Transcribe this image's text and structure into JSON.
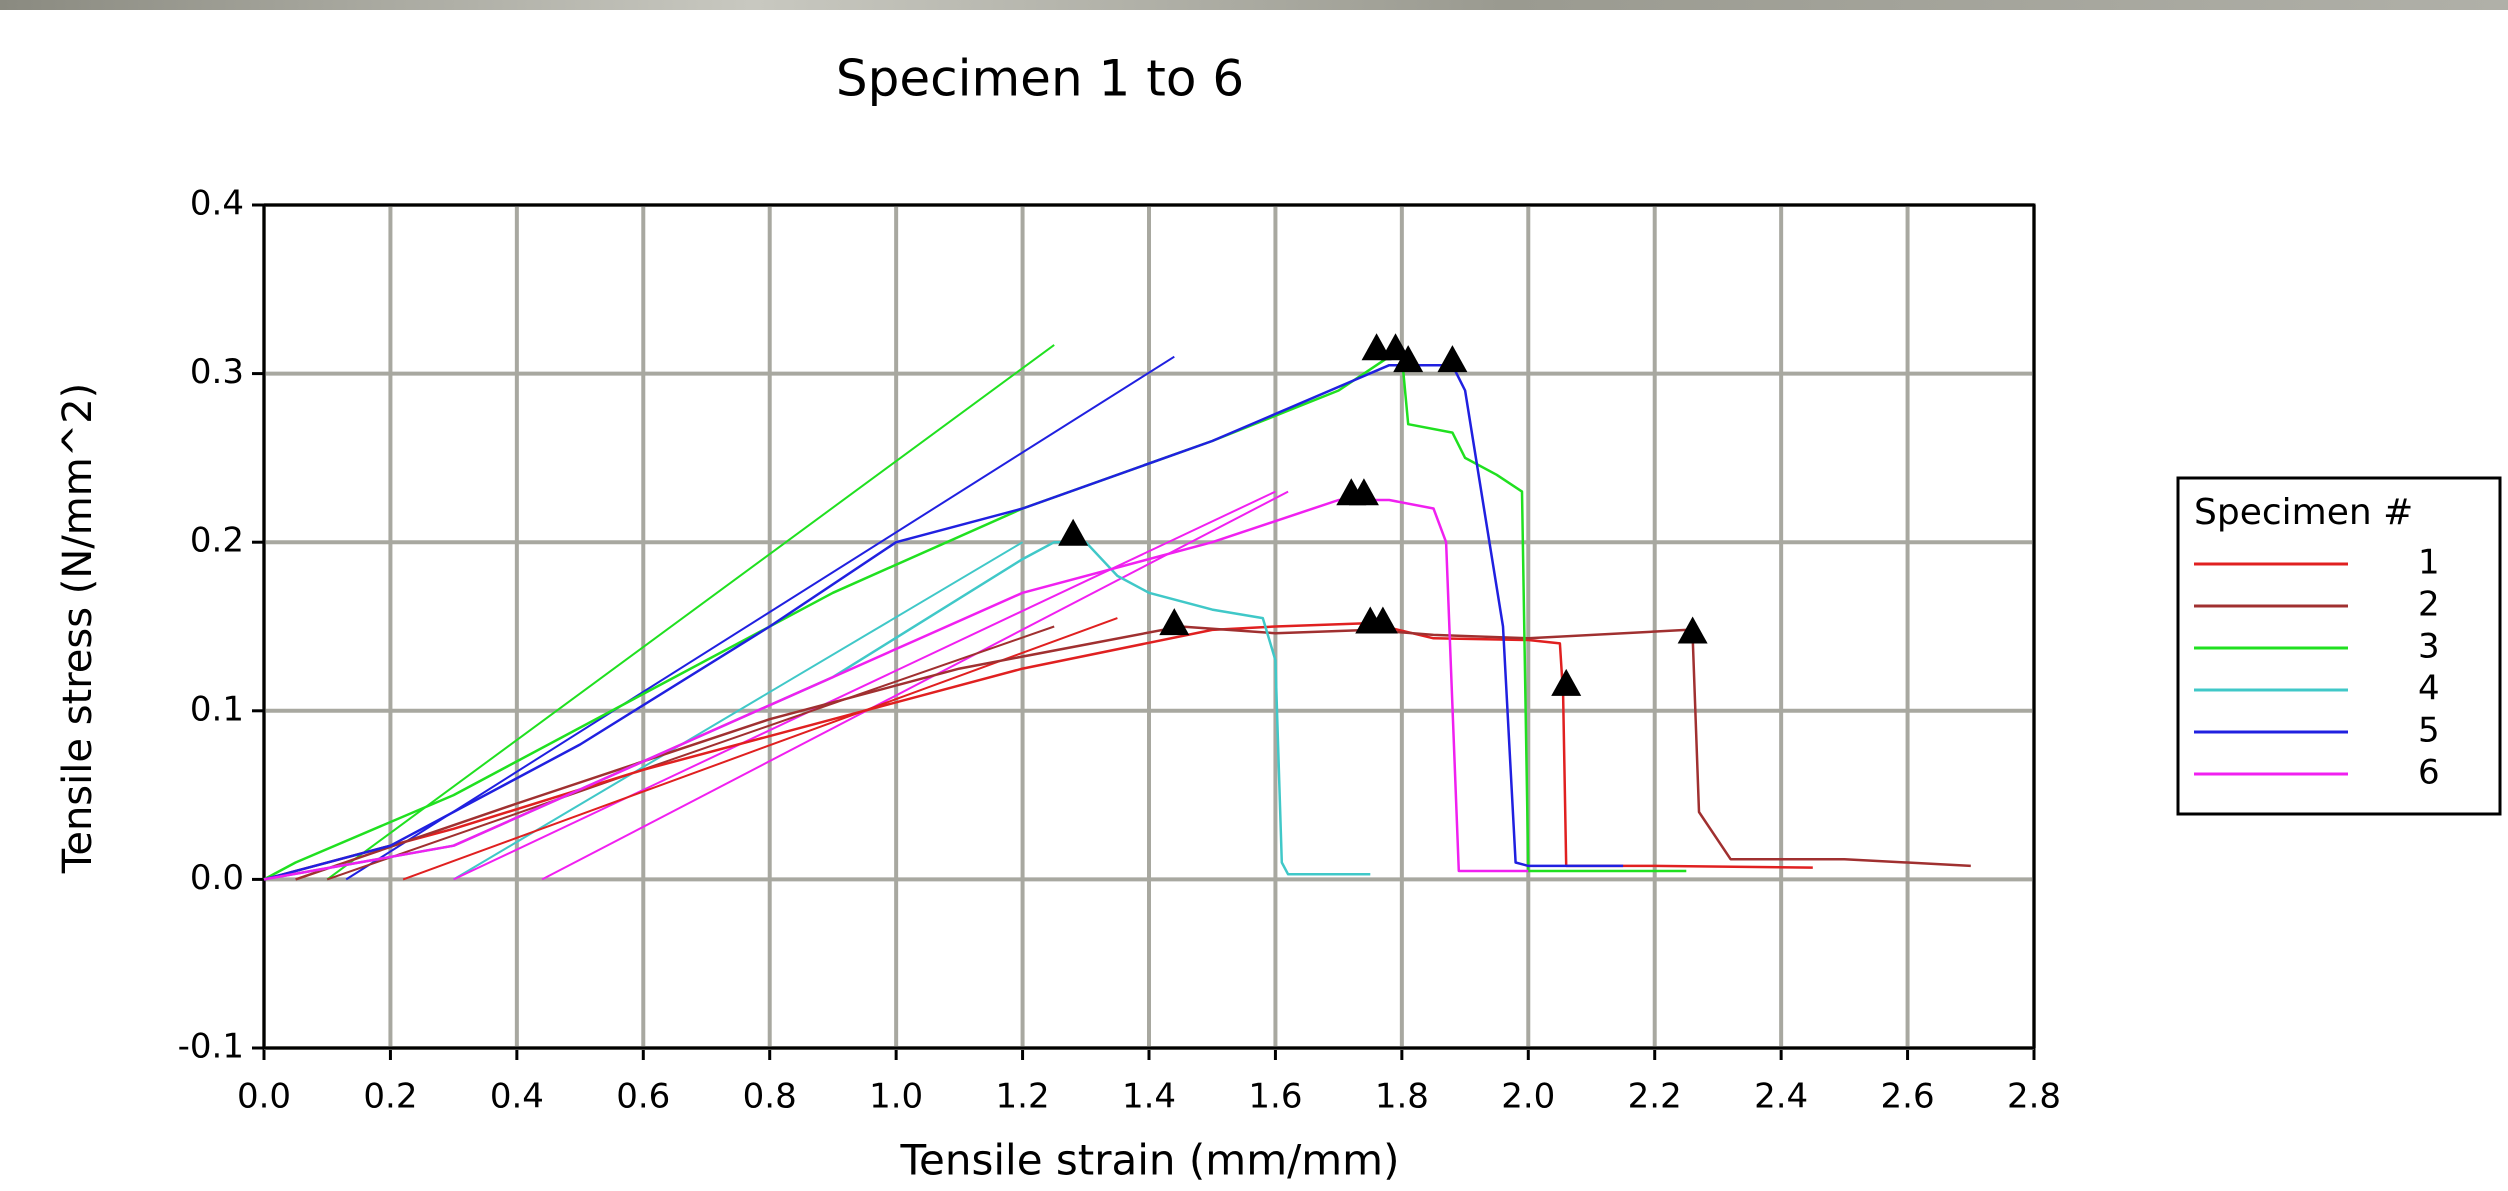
{
  "chart_data": {
    "type": "line",
    "title": "Specimen 1 to 6",
    "x_label": "Tensile strain (mm/mm)",
    "y_label": "Tensile stress (N/mm^2)",
    "legend_title": "Specimen #",
    "legend": "right",
    "grid": true,
    "xlim": [
      0,
      2.8
    ],
    "ylim": [
      -0.1,
      0.4
    ],
    "xticks": [
      {
        "value": 0,
        "label": "0.0"
      },
      0.2,
      0.4,
      0.6,
      0.8,
      {
        "value": 1,
        "label": "1.0"
      },
      1.2,
      1.4,
      1.6,
      1.8,
      {
        "value": 2,
        "label": "2.0"
      },
      2.2,
      2.4,
      2.6,
      2.8
    ],
    "yticks": [
      -0.1,
      {
        "value": 0,
        "label": "0.0"
      },
      0.1,
      0.2,
      0.3,
      0.4
    ],
    "series": [
      {
        "name": "1",
        "color": "#e02020",
        "x": [
          0,
          0.3,
          0.6,
          0.9,
          1.2,
          1.5,
          1.6,
          1.75,
          1.85,
          2.0,
          2.05,
          2.055,
          2.06,
          2.2,
          2.45
        ],
        "values": [
          0,
          0.03,
          0.065,
          0.095,
          0.125,
          0.148,
          0.15,
          0.152,
          0.143,
          0.142,
          0.14,
          0.11,
          0.008,
          0.008,
          0.007
        ]
      },
      {
        "name": "2",
        "color": "#a03030",
        "x": [
          0.05,
          0.4,
          0.8,
          1.1,
          1.45,
          1.6,
          1.75,
          1.85,
          2.0,
          2.25,
          2.26,
          2.27,
          2.32,
          2.5,
          2.7
        ],
        "values": [
          0,
          0.045,
          0.095,
          0.125,
          0.15,
          0.146,
          0.148,
          0.145,
          0.143,
          0.148,
          0.145,
          0.04,
          0.012,
          0.012,
          0.008
        ]
      },
      {
        "name": "3",
        "color": "#20e020",
        "x": [
          0,
          0.05,
          0.3,
          0.6,
          0.9,
          1.2,
          1.5,
          1.7,
          1.78,
          1.8,
          1.81,
          1.88,
          1.9,
          1.95,
          1.99,
          2.0,
          2.25
        ],
        "values": [
          0,
          0.01,
          0.05,
          0.11,
          0.17,
          0.22,
          0.26,
          0.29,
          0.31,
          0.31,
          0.27,
          0.265,
          0.25,
          0.24,
          0.23,
          0.005,
          0.005
        ]
      },
      {
        "name": "4",
        "color": "#40c8c8",
        "x": [
          0,
          0.3,
          0.6,
          0.9,
          1.2,
          1.25,
          1.3,
          1.35,
          1.4,
          1.5,
          1.58,
          1.6,
          1.61,
          1.62,
          1.75
        ],
        "values": [
          0,
          0.02,
          0.07,
          0.12,
          0.19,
          0.2,
          0.2,
          0.18,
          0.17,
          0.16,
          0.155,
          0.13,
          0.01,
          0.003,
          0.003
        ]
      },
      {
        "name": "5",
        "color": "#2020e0",
        "x": [
          0,
          0.2,
          0.5,
          0.8,
          1.0,
          1.2,
          1.5,
          1.78,
          1.88,
          1.9,
          1.93,
          1.96,
          1.98,
          2.0,
          2.15
        ],
        "values": [
          0,
          0.02,
          0.08,
          0.15,
          0.2,
          0.22,
          0.26,
          0.305,
          0.305,
          0.29,
          0.22,
          0.15,
          0.01,
          0.008,
          0.008
        ]
      },
      {
        "name": "6",
        "color": "#f020f0",
        "x": [
          0,
          0.3,
          0.6,
          0.9,
          1.2,
          1.5,
          1.7,
          1.78,
          1.85,
          1.87,
          1.89,
          2.0
        ],
        "values": [
          0,
          0.02,
          0.07,
          0.12,
          0.17,
          0.2,
          0.225,
          0.225,
          0.22,
          0.2,
          0.005,
          0.005
        ]
      }
    ],
    "fit_lines": [
      {
        "color": "#20e020",
        "x": [
          0.1,
          1.25
        ],
        "values": [
          0,
          0.317
        ]
      },
      {
        "color": "#2020e0",
        "x": [
          0.13,
          1.44
        ],
        "values": [
          0,
          0.31
        ]
      },
      {
        "color": "#40c8c8",
        "x": [
          0.3,
          1.2
        ],
        "values": [
          0,
          0.2
        ]
      },
      {
        "color": "#f020f0",
        "x": [
          0.3,
          1.6
        ],
        "values": [
          0,
          0.23
        ]
      },
      {
        "color": "#f020f0",
        "x": [
          0.44,
          1.62
        ],
        "values": [
          0,
          0.23
        ]
      },
      {
        "color": "#e02020",
        "x": [
          0.22,
          1.35
        ],
        "values": [
          0,
          0.155
        ]
      },
      {
        "color": "#a03030",
        "x": [
          0.1,
          1.25
        ],
        "values": [
          0,
          0.15
        ]
      }
    ],
    "markers": {
      "color": "#000000",
      "x": [
        1.28,
        1.44,
        1.72,
        1.74,
        1.75,
        1.77,
        1.76,
        1.79,
        1.81,
        1.88,
        2.06,
        2.26
      ],
      "values": [
        0.205,
        0.152,
        0.229,
        0.229,
        0.153,
        0.153,
        0.315,
        0.315,
        0.308,
        0.308,
        0.116,
        0.147
      ]
    }
  }
}
